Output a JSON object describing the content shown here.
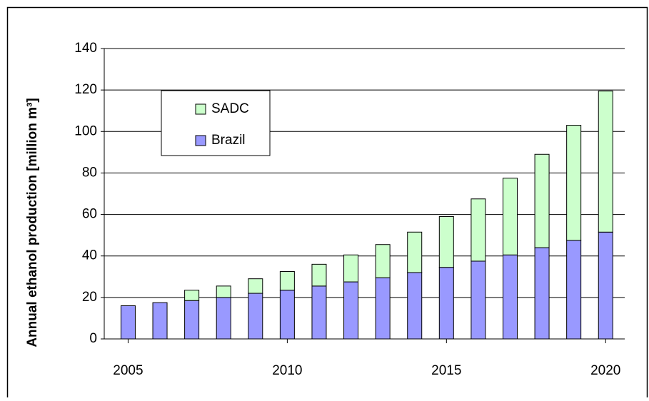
{
  "chart_data": {
    "type": "stacked_bar",
    "y_label": "Annual ethanol production [million m³]",
    "x": [
      2005,
      2006,
      2007,
      2008,
      2009,
      2010,
      2011,
      2012,
      2013,
      2014,
      2015,
      2016,
      2017,
      2018,
      2019,
      2020
    ],
    "series": [
      {
        "name": "Brazil",
        "color": "#9999ff",
        "values": [
          16,
          17.5,
          18.5,
          20,
          22,
          23.5,
          25.5,
          27.5,
          29.5,
          32,
          34.5,
          37.5,
          40.5,
          44,
          47.5,
          51.5
        ]
      },
      {
        "name": "SADC",
        "color": "#ccffcc",
        "values": [
          0,
          0,
          5,
          5.5,
          7,
          9,
          10.5,
          13,
          16,
          19.5,
          24.5,
          30,
          37,
          45,
          55.5,
          68
        ]
      }
    ],
    "xlim": [
      2004.25,
      2020.6
    ],
    "xticks": [
      2005,
      2010,
      2015,
      2020
    ],
    "ylim": [
      0,
      140
    ],
    "yticks": [
      0,
      20,
      40,
      60,
      80,
      100,
      120,
      140
    ],
    "grid": true,
    "legend": "upper left"
  }
}
